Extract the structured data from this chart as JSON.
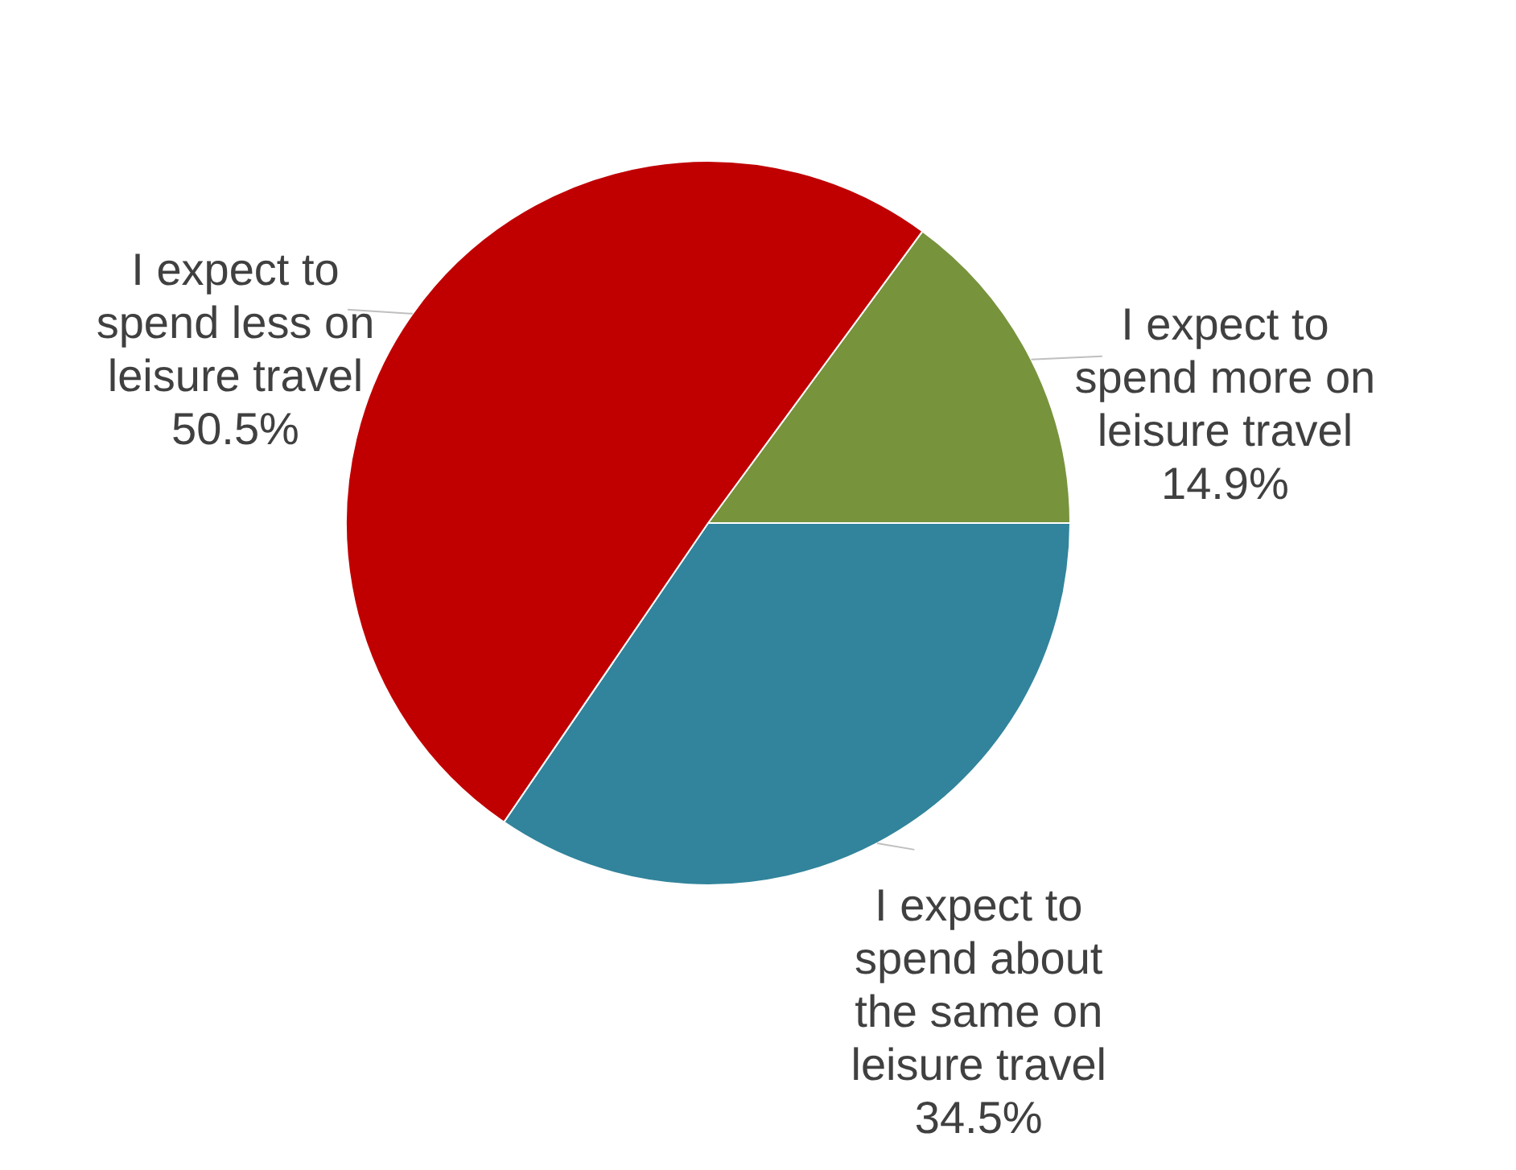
{
  "chart_data": {
    "type": "pie",
    "categories": [
      "I expect to spend more on leisure travel",
      "I expect to spend about the same on leisure travel",
      "I expect to spend less on leisure travel"
    ],
    "values": [
      14.9,
      34.5,
      50.5
    ],
    "colors": [
      "#77933c",
      "#31849b",
      "#c00000"
    ],
    "value_labels": [
      "14.9%",
      "34.5%",
      "50.5%"
    ],
    "legend": false
  }
}
